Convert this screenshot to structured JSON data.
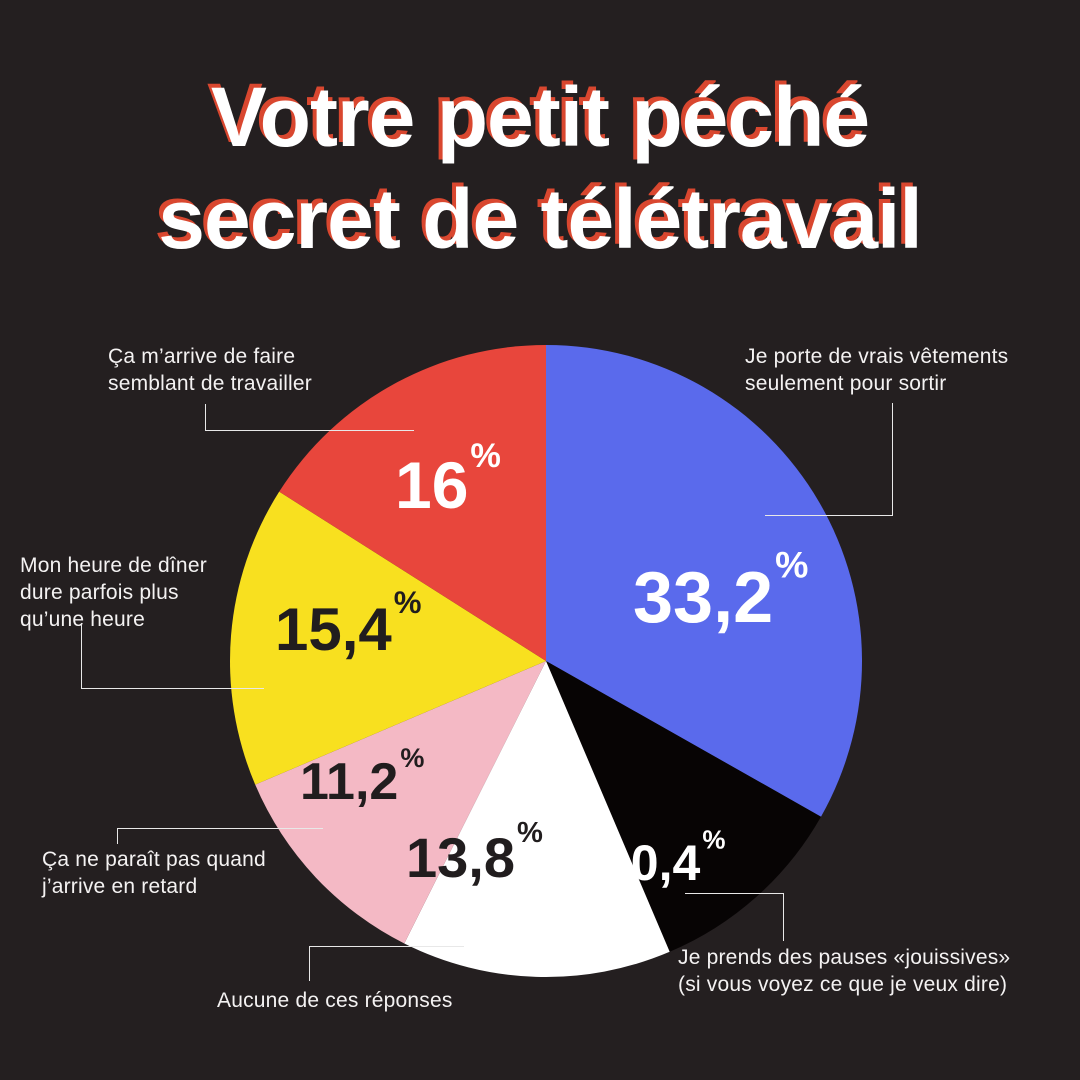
{
  "title": {
    "line1": "Votre petit péché",
    "line2": "secret de télétravail"
  },
  "colors": {
    "background": "#241f20",
    "title_text": "#ffffff",
    "title_shadow": "#d9472f",
    "leader_line": "#e8e8e8",
    "callout_text": "#f4f2f2"
  },
  "chart_data": {
    "type": "pie",
    "title": "Votre petit péché secret de télétravail",
    "start_angle_deg": -90,
    "direction": "clockwise",
    "percent_symbol": "%",
    "slices": [
      {
        "label": "Je porte de vrais vêtements\nseulement pour sortir",
        "value": 33.2,
        "display": "33,2",
        "color": "#5a6aec",
        "value_color": "#ffffff"
      },
      {
        "label": "Je prends des pauses «jouissives»\n(si vous voyez ce que je veux dire)",
        "value": 10.4,
        "display": "10,4",
        "color": "#070404",
        "value_color": "#ffffff"
      },
      {
        "label": "Aucune de ces réponses",
        "value": 13.8,
        "display": "13,8",
        "color": "#ffffff",
        "value_color": "#211d1e"
      },
      {
        "label": "Ça ne paraît pas quand\nj’arrive en retard",
        "value": 11.2,
        "display": "11,2",
        "color": "#f4b9c5",
        "value_color": "#211d1e"
      },
      {
        "label": "Mon heure de dîner\ndure parfois plus\nqu’une heure",
        "value": 15.4,
        "display": "15,4",
        "color": "#f8e01f",
        "value_color": "#211d1e"
      },
      {
        "label": "Ça m’arrive de faire\nsemblant de travailler",
        "value": 16,
        "display": "16",
        "color": "#e8463c",
        "value_color": "#ffffff"
      }
    ]
  }
}
